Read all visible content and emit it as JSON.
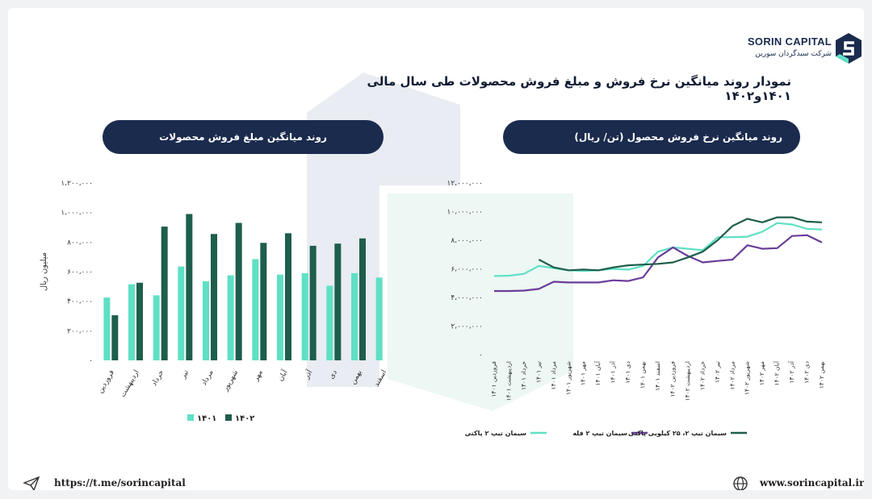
{
  "header": {
    "brand": "SORIN CAPITAL",
    "brand_sub": "شرکت سبدگردان سورین",
    "title": "نمودار روند میانگین نرخ فروش و مبلغ فروش محصولات طی سال مالی ۱۴۰۱و۱۴۰۲"
  },
  "footer": {
    "telegram": "https://t.me/sorincapital",
    "website": "www.sorincapital.ir"
  },
  "colors": {
    "navy": "#1b2b4e",
    "mint": "#5fe0c4",
    "dark_green": "#1e5e4c",
    "purple": "#6a3d9a",
    "watermark": "#e9ecf2"
  },
  "icons": [
    "send-icon",
    "globe-icon",
    "logo-mark-icon"
  ],
  "chart_data": [
    {
      "type": "bar",
      "title": "روند میانگین مبلغ فروش محصولات",
      "ylabel": "میلیون ریال",
      "ylim": [
        0,
        1200000
      ],
      "yticks": [
        "۰",
        "۲۰۰،۰۰۰",
        "۴۰۰،۰۰۰",
        "۶۰۰،۰۰۰",
        "۸۰۰،۰۰۰",
        "۱،۰۰۰،۰۰۰",
        "۱،۲۰۰،۰۰۰"
      ],
      "categories": [
        "فروردین",
        "اردیبهشت",
        "خرداد",
        "تیر",
        "مرداد",
        "شهریور",
        "مهر",
        "آبان",
        "آذر",
        "دی",
        "بهمن",
        "اسفند"
      ],
      "series": [
        {
          "name": "۱۴۰۱",
          "color": "#5fe0c4",
          "values": [
            425000,
            515000,
            440000,
            635000,
            535000,
            575000,
            685000,
            580000,
            590000,
            505000,
            590000,
            560000
          ]
        },
        {
          "name": "۱۴۰۲",
          "color": "#1e5e4c",
          "values": [
            305000,
            525000,
            905000,
            990000,
            855000,
            930000,
            795000,
            860000,
            775000,
            790000,
            825000,
            null
          ]
        }
      ],
      "legend": "bottom",
      "grid": false
    },
    {
      "type": "line",
      "title": "روند میانگین نرخ فروش محصول (تن/ ریال)",
      "ylim": [
        0,
        12000000
      ],
      "yticks": [
        "۰",
        "۲،۰۰۰،۰۰۰",
        "۴،۰۰۰،۰۰۰",
        "۶،۰۰۰،۰۰۰",
        "۸،۰۰۰،۰۰۰",
        "۱۰،۰۰۰،۰۰۰",
        "۱۲،۰۰۰،۰۰۰"
      ],
      "x": [
        "فروردین ۱۴۰۱",
        "اردیبهشت ۱۴۰۱",
        "خرداد ۱۴۰۱",
        "تیر ۱۴۰۱",
        "مرداد ۱۴۰۱",
        "شهریور ۱۴۰۱",
        "مهر ۱۴۰۱",
        "آبان ۱۴۰۱",
        "آذر ۱۴۰۱",
        "دی ۱۴۰۱",
        "بهمن ۱۴۰۱",
        "اسفند ۱۴۰۱",
        "فروردین ۱۴۰۲",
        "اردیبهشت ۱۴۰۲",
        "خرداد ۱۴۰۲",
        "تیر ۱۴۰۲",
        "مرداد ۱۴۰۲",
        "شهریور ۱۴۰۲",
        "مهر ۱۴۰۲",
        "آبان ۱۴۰۲",
        "آذر ۱۴۰۲",
        "دی ۱۴۰۲",
        "بهمن ۱۴۰۲"
      ],
      "series": [
        {
          "name": "سیمان تیپ ۲ پاکتی",
          "color": "#5fe0c4",
          "values": [
            5500000,
            5520000,
            5650000,
            6200000,
            6050000,
            5900000,
            5850000,
            5900000,
            6000000,
            5950000,
            6200000,
            7200000,
            7500000,
            7400000,
            7300000,
            8200000,
            8220000,
            8250000,
            8600000,
            9200000,
            9100000,
            8800000,
            8750000
          ]
        },
        {
          "name": "سیمان تیپ ۲ فله",
          "color": "#6a3d9a",
          "values": [
            4450000,
            4450000,
            4480000,
            4600000,
            5100000,
            5050000,
            5050000,
            5050000,
            5200000,
            5150000,
            5400000,
            6800000,
            7500000,
            6900000,
            6450000,
            6550000,
            6650000,
            7650000,
            7400000,
            7450000,
            8300000,
            8350000,
            7850000
          ]
        },
        {
          "name": "سیمان تیپ ۲، ۲۵ کیلویی پاکتی",
          "color": "#1e5e4c",
          "values": [
            null,
            null,
            null,
            6650000,
            6100000,
            5900000,
            5950000,
            5900000,
            6100000,
            6250000,
            6300000,
            6350000,
            6450000,
            6800000,
            7200000,
            8000000,
            9000000,
            9500000,
            9250000,
            9600000,
            9600000,
            9300000,
            9250000
          ]
        }
      ],
      "legend": "bottom",
      "grid": false
    }
  ]
}
